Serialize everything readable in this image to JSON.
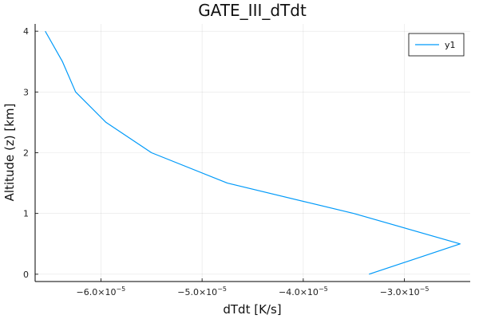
{
  "chart_data": {
    "type": "line",
    "title": "GATE_III_dTdt",
    "xlabel": "dTdt [K/s]",
    "ylabel": "Altitude (z) [km]",
    "xlim": [
      -6.65e-05,
      -2.35e-05
    ],
    "ylim": [
      -0.12,
      4.12
    ],
    "grid": true,
    "legend": {
      "position": "top-right",
      "entries": [
        "y1"
      ]
    },
    "x_ticks": [
      {
        "value": -6e-05,
        "mantissa": "−6.0×10",
        "exponent": "−5"
      },
      {
        "value": -5e-05,
        "mantissa": "−5.0×10",
        "exponent": "−5"
      },
      {
        "value": -4e-05,
        "mantissa": "−4.0×10",
        "exponent": "−5"
      },
      {
        "value": -3e-05,
        "mantissa": "−3.0×10",
        "exponent": "−5"
      }
    ],
    "y_ticks": [
      {
        "value": 0,
        "label": "0"
      },
      {
        "value": 1,
        "label": "1"
      },
      {
        "value": 2,
        "label": "2"
      },
      {
        "value": 3,
        "label": "3"
      },
      {
        "value": 4,
        "label": "4"
      }
    ],
    "series": [
      {
        "name": "y1",
        "color": "#009af9",
        "points": [
          {
            "x": -3.35e-05,
            "y": 0.0
          },
          {
            "x": -2.45e-05,
            "y": 0.5
          },
          {
            "x": -3.5e-05,
            "y": 1.0
          },
          {
            "x": -4.75e-05,
            "y": 1.5
          },
          {
            "x": -5.5e-05,
            "y": 2.0
          },
          {
            "x": -5.95e-05,
            "y": 2.5
          },
          {
            "x": -6.25e-05,
            "y": 3.0
          },
          {
            "x": -6.38e-05,
            "y": 3.5
          },
          {
            "x": -6.55e-05,
            "y": 4.0
          }
        ]
      }
    ]
  }
}
